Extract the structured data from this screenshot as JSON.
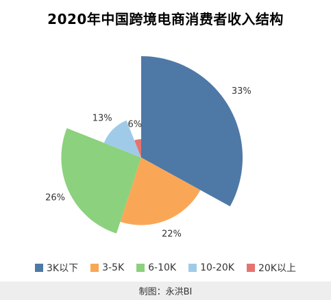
{
  "chart_data": {
    "type": "pie",
    "variant": "rose",
    "title": "2020年中国跨境电商消费者收入结构",
    "categories": [
      "3K以下",
      "3-5K",
      "6-10K",
      "10-20K",
      "20K以上"
    ],
    "values": [
      33,
      22,
      26,
      13,
      6
    ],
    "labels": [
      "33%",
      "22%",
      "26%",
      "13%",
      "6%"
    ],
    "colors": [
      "#4e79a7",
      "#f9a756",
      "#8cd17d",
      "#a0cbe8",
      "#e4746f"
    ],
    "legend": "bottom"
  },
  "footer": "制图：永洪BI"
}
